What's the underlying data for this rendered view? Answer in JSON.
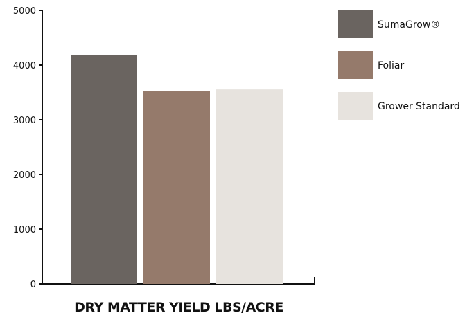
{
  "chart_data": {
    "type": "bar",
    "title": "",
    "xlabel": "DRY MATTER YIELD LBS/ACRE",
    "ylabel": "",
    "ylim": [
      0,
      5000
    ],
    "yticks": [
      0,
      1000,
      2000,
      3000,
      4000,
      5000
    ],
    "grid": false,
    "legend_position": "right",
    "series": [
      {
        "name": "SumaGrow®",
        "value": 4190,
        "color": "#6a6460"
      },
      {
        "name": "Foliar",
        "value": 3520,
        "color": "#957a6b"
      },
      {
        "name": "Grower Standard",
        "value": 3555,
        "color": "#e7e3de"
      }
    ]
  }
}
